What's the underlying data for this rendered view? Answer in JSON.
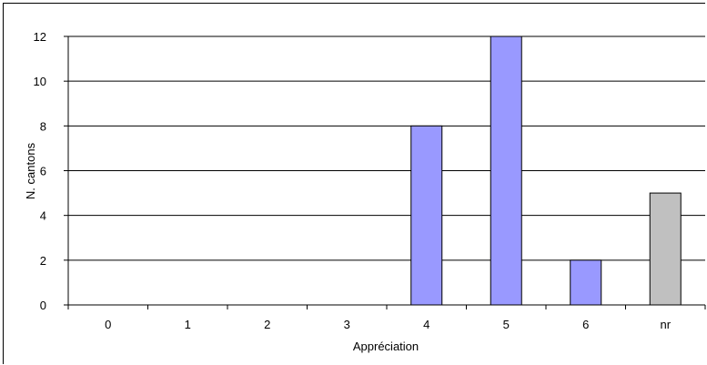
{
  "chart_data": {
    "type": "bar",
    "categories": [
      "0",
      "1",
      "2",
      "3",
      "4",
      "5",
      "6",
      "nr"
    ],
    "values": [
      0,
      0,
      0,
      0,
      8,
      12,
      2,
      5
    ],
    "xlabel": "Appréciation",
    "ylabel": "N. cantons",
    "ylim": [
      0,
      12
    ],
    "yticks": [
      0,
      2,
      4,
      6,
      8,
      10,
      12
    ],
    "grid": true,
    "legend": "none",
    "colors": {
      "default": "#9999ff",
      "nr": "#c0c0c0",
      "bar_stroke": "#000000",
      "gridline": "#000000"
    }
  }
}
